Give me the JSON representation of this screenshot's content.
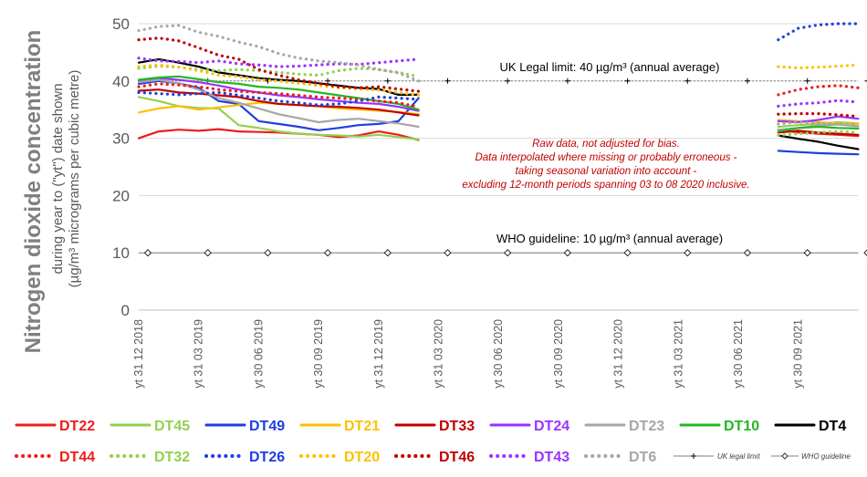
{
  "chart_data": {
    "type": "line",
    "title": "",
    "ylabel_main": "Nitrogen dioxide concentration",
    "ylabel_sub1": "during year to (\"yt\") date shown",
    "ylabel_sub2": "(µg/m³ micrograms per cubic metre)",
    "ylim": [
      0,
      50
    ],
    "yticks": [
      0,
      10,
      20,
      30,
      40,
      50
    ],
    "x_tick_labels": [
      "yt 31 12 2018",
      "yt 31 03 2019",
      "yt 30 06 2019",
      "yt 30 09 2019",
      "yt 31 12 2019",
      "yt 31 03 2020",
      "yt 30 06 2020",
      "yt 30 09 2020",
      "yt 31 12 2020",
      "yt 31 03 2021",
      "yt 30 06 2021",
      "yt 30 09 2021"
    ],
    "x_months": [
      "2018-12",
      "2019-01",
      "2019-02",
      "2019-03",
      "2019-04",
      "2019-05",
      "2019-06",
      "2019-07",
      "2019-08",
      "2019-09",
      "2019-10",
      "2019-11",
      "2019-12",
      "2020-01",
      "2020-02",
      "2020-03",
      "2020-04",
      "2020-05",
      "2020-06",
      "2020-07",
      "2020-08",
      "2020-09",
      "2020-10",
      "2020-11",
      "2020-12",
      "2021-01",
      "2021-02",
      "2021-03",
      "2021-04",
      "2021-05",
      "2021-06",
      "2021-07",
      "2021-08",
      "2021-09",
      "2021-10",
      "2021-11",
      "2021-12"
    ],
    "legal_limit": {
      "value": 40,
      "label": "UK Legal limit: 40 µg/m³ (annual average)",
      "legend": "UK legal limit"
    },
    "who_guideline": {
      "value": 10,
      "label": "WHO guideline: 10 µg/m³ (annual average)",
      "legend": "WHO guideline"
    },
    "annotation": [
      "Raw data, not adjusted for bias.",
      "Data interpolated where missing or probably erroneous -",
      "taking seasonal variation into account -",
      "excluding 12-month periods spanning 03 to 08 2020 inclusive."
    ],
    "annotation_color": "#c00000",
    "series": [
      {
        "name": "DT22",
        "color": "#ee1c1c",
        "dash": false,
        "early": [
          30.0,
          31.2,
          31.5,
          31.3,
          31.6,
          31.2,
          31.1,
          31.0,
          30.8,
          30.6,
          30.2,
          30.5,
          31.2,
          30.6,
          29.7
        ],
        "late": [
          31.5,
          31.0,
          30.8,
          30.6,
          30.4
        ]
      },
      {
        "name": "DT45",
        "color": "#92d050",
        "dash": false,
        "early": [
          37.2,
          36.5,
          35.6,
          35.3,
          35.2,
          32.3,
          31.8,
          31.2,
          30.8,
          30.6,
          30.5,
          30.3,
          30.6,
          30.2,
          29.8
        ],
        "late": [
          32.0,
          32.3,
          32.5,
          32.8,
          32.6
        ]
      },
      {
        "name": "DT49",
        "color": "#1f3ee0",
        "dash": false,
        "early": [
          39.5,
          40.0,
          39.6,
          38.8,
          36.5,
          36.0,
          33.0,
          32.5,
          32.0,
          31.4,
          31.8,
          32.3,
          32.5,
          33.0,
          37.0
        ],
        "late": [
          27.8,
          27.6,
          27.4,
          27.3,
          27.2
        ]
      },
      {
        "name": "DT21",
        "color": "#ffc000",
        "dash": false,
        "early": [
          34.5,
          35.2,
          35.6,
          35.0,
          35.4,
          35.8,
          36.2,
          36.0,
          35.8,
          35.6,
          35.2,
          35.0,
          34.8,
          34.6,
          34.2
        ],
        "late": [
          33.2,
          33.0,
          32.8,
          32.6,
          32.5
        ]
      },
      {
        "name": "DT33",
        "color": "#c00000",
        "dash": false,
        "early": [
          38.3,
          38.5,
          38.0,
          37.8,
          37.5,
          37.2,
          36.5,
          36.0,
          35.8,
          35.6,
          35.5,
          35.3,
          35.0,
          34.5,
          34.0
        ],
        "late": [
          31.0,
          31.3,
          31.0,
          30.8,
          30.6
        ]
      },
      {
        "name": "DT24",
        "color": "#9933ff",
        "dash": false,
        "early": [
          40.0,
          40.5,
          40.2,
          39.8,
          39.2,
          38.5,
          38.0,
          37.5,
          37.2,
          36.8,
          36.5,
          36.2,
          36.0,
          35.5,
          34.8
        ],
        "late": [
          33.0,
          32.8,
          33.2,
          33.8,
          33.4
        ]
      },
      {
        "name": "DT23",
        "color": "#a6a6a6",
        "dash": false,
        "early": [
          39.8,
          40.2,
          39.6,
          38.5,
          37.0,
          36.2,
          35.2,
          34.2,
          33.5,
          32.8,
          33.2,
          33.4,
          33.0,
          32.6,
          32.0
        ],
        "late": [
          31.5,
          31.8,
          32.2,
          32.4,
          32.1
        ]
      },
      {
        "name": "DT10",
        "color": "#22b822",
        "dash": false,
        "early": [
          40.2,
          40.6,
          40.8,
          40.3,
          39.8,
          39.5,
          39.0,
          38.8,
          38.5,
          38.0,
          37.5,
          37.0,
          36.5,
          36.0,
          35.0
        ],
        "late": [
          31.2,
          31.8,
          32.0,
          31.8,
          31.7
        ]
      },
      {
        "name": "DT4",
        "color": "#000000",
        "dash": false,
        "early": [
          43.2,
          43.8,
          43.2,
          42.5,
          41.5,
          41.0,
          40.5,
          40.2,
          40.0,
          39.6,
          39.2,
          38.8,
          38.6,
          37.6,
          37.6
        ],
        "late": [
          30.5,
          29.9,
          29.4,
          28.7,
          28.1
        ]
      },
      {
        "name": "DT44",
        "color": "#ee1c1c",
        "dash": true,
        "early": [
          39.0,
          39.5,
          39.3,
          39.0,
          38.5,
          38.2,
          38.0,
          37.8,
          37.5,
          37.2,
          37.0,
          36.8,
          36.5,
          36.2,
          35.5
        ],
        "late": [
          37.6,
          38.5,
          39.0,
          39.2,
          38.8
        ]
      },
      {
        "name": "DT32",
        "color": "#92d050",
        "dash": true,
        "early": [
          42.2,
          42.6,
          42.4,
          42.0,
          41.8,
          42.0,
          41.8,
          41.5,
          41.2,
          41.0,
          41.8,
          42.2,
          42.0,
          41.5,
          40.8
        ],
        "late": [
          30.5,
          30.8,
          31.0,
          31.2,
          31.0
        ]
      },
      {
        "name": "DT26",
        "color": "#1f3ee0",
        "dash": true,
        "early": [
          38.0,
          37.8,
          37.6,
          37.8,
          38.0,
          37.5,
          37.0,
          36.5,
          36.2,
          35.8,
          36.0,
          36.5,
          37.2,
          37.0,
          36.8
        ],
        "late": [
          47.2,
          49.2,
          49.8,
          50.0,
          50.0
        ]
      },
      {
        "name": "DT20",
        "color": "#ffc000",
        "dash": true,
        "early": [
          42.5,
          42.8,
          42.4,
          41.8,
          41.0,
          40.8,
          40.2,
          40.0,
          39.6,
          39.2,
          38.8,
          38.6,
          38.4,
          38.0,
          37.5
        ],
        "late": [
          42.5,
          42.3,
          42.4,
          42.6,
          42.8
        ]
      },
      {
        "name": "DT46",
        "color": "#c00000",
        "dash": true,
        "early": [
          47.2,
          47.5,
          47.0,
          45.8,
          44.5,
          43.8,
          42.0,
          41.0,
          40.2,
          39.6,
          39.0,
          38.8,
          39.0,
          38.6,
          38.2
        ],
        "late": [
          34.2,
          34.3,
          34.3,
          34.1,
          33.8
        ]
      },
      {
        "name": "DT43",
        "color": "#9933ff",
        "dash": true,
        "early": [
          44.0,
          43.5,
          43.4,
          43.2,
          43.5,
          43.0,
          42.8,
          42.5,
          42.6,
          42.8,
          43.0,
          42.9,
          43.2,
          43.5,
          43.8
        ],
        "late": [
          35.6,
          36.0,
          36.2,
          36.6,
          36.3
        ]
      },
      {
        "name": "DT6",
        "color": "#a6a6a6",
        "dash": true,
        "early": [
          48.8,
          49.5,
          49.7,
          48.5,
          47.8,
          46.8,
          46.0,
          44.8,
          44.0,
          43.5,
          43.2,
          42.8,
          42.0,
          41.4,
          40.0
        ],
        "late": [
          32.5,
          32.8,
          32.6,
          32.5,
          32.4
        ]
      }
    ]
  }
}
